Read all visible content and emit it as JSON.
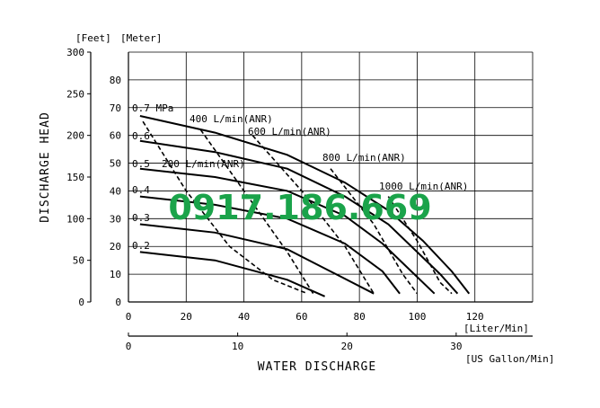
{
  "chart_data": {
    "type": "line",
    "xlabel": "WATER DISCHARGE",
    "ylabel": "DISCHARGE HEAD",
    "units": {
      "y_left": "[Feet]",
      "y_right": "[Meter]",
      "x_top": "[Liter/Min]",
      "x_bottom": "[US Gallon/Min]"
    },
    "axes": {
      "x_lpm": {
        "min": 0,
        "max": 140,
        "ticks": [
          0,
          20,
          40,
          60,
          80,
          100,
          120
        ]
      },
      "x_gpm": {
        "min": 0,
        "max": 37,
        "ticks": [
          0,
          10,
          20,
          30
        ]
      },
      "y_m": {
        "min": 0,
        "max": 90,
        "ticks": [
          0,
          10,
          20,
          30,
          40,
          50,
          60,
          70,
          80
        ]
      },
      "y_ft": {
        "min": 0,
        "max": 300,
        "ticks": [
          0,
          50,
          100,
          150,
          200,
          250,
          300
        ]
      }
    },
    "grid": true,
    "pressure_curves": [
      {
        "name": "0.7 MPa",
        "points": [
          [
            4,
            67
          ],
          [
            30,
            61
          ],
          [
            55,
            53
          ],
          [
            75,
            43
          ],
          [
            90,
            33
          ],
          [
            102,
            22
          ],
          [
            112,
            11
          ],
          [
            118,
            3
          ]
        ]
      },
      {
        "name": "0.6",
        "points": [
          [
            4,
            58
          ],
          [
            30,
            54
          ],
          [
            55,
            48
          ],
          [
            75,
            38
          ],
          [
            90,
            28
          ],
          [
            100,
            18
          ],
          [
            108,
            10
          ],
          [
            114,
            3
          ]
        ]
      },
      {
        "name": "0.5",
        "points": [
          [
            4,
            48
          ],
          [
            30,
            45
          ],
          [
            55,
            40
          ],
          [
            75,
            31
          ],
          [
            88,
            21
          ],
          [
            98,
            11
          ],
          [
            106,
            3
          ]
        ]
      },
      {
        "name": "0.4",
        "points": [
          [
            4,
            38
          ],
          [
            30,
            35
          ],
          [
            55,
            30
          ],
          [
            75,
            21
          ],
          [
            88,
            11
          ],
          [
            94,
            3
          ]
        ]
      },
      {
        "name": "0.3",
        "points": [
          [
            4,
            28
          ],
          [
            30,
            25
          ],
          [
            55,
            19
          ],
          [
            70,
            11
          ],
          [
            85,
            3
          ]
        ]
      },
      {
        "name": "0.2",
        "points": [
          [
            4,
            18
          ],
          [
            30,
            15
          ],
          [
            55,
            8
          ],
          [
            68,
            2
          ]
        ]
      }
    ],
    "flow_curves": [
      {
        "name": "400 L/min(ANR)",
        "points": [
          [
            25,
            62
          ],
          [
            40,
            40
          ],
          [
            55,
            18
          ],
          [
            64,
            3
          ]
        ]
      },
      {
        "name": "600 L/min(ANR)",
        "points": [
          [
            43,
            60
          ],
          [
            60,
            40
          ],
          [
            75,
            20
          ],
          [
            85,
            3
          ]
        ]
      },
      {
        "name": "800 L/min(ANR)",
        "points": [
          [
            70,
            48
          ],
          [
            85,
            28
          ],
          [
            95,
            10
          ],
          [
            100,
            3
          ]
        ]
      },
      {
        "name": "1000 L/min(ANR)",
        "points": [
          [
            90,
            38
          ],
          [
            100,
            22
          ],
          [
            108,
            7
          ],
          [
            112,
            3
          ]
        ]
      },
      {
        "name": "200 L/min(ANR)",
        "points": [
          [
            5,
            65
          ],
          [
            20,
            40
          ],
          [
            35,
            20
          ],
          [
            50,
            8
          ],
          [
            62,
            3
          ]
        ]
      }
    ],
    "pressure_labels": [
      "0.7 MPa",
      "0.6",
      "0.5",
      "0.4",
      "0.3",
      "0.2"
    ],
    "flow_labels": [
      "400 L/min(ANR)",
      "600 L/min(ANR)",
      "800 L/min(ANR)",
      "1000 L/min(ANR)",
      "200 L/min(ANR)"
    ]
  },
  "watermark": "0917.186.669",
  "colors": {
    "watermark": "#1aa34a",
    "line": "#000000",
    "grid": "#000000"
  }
}
